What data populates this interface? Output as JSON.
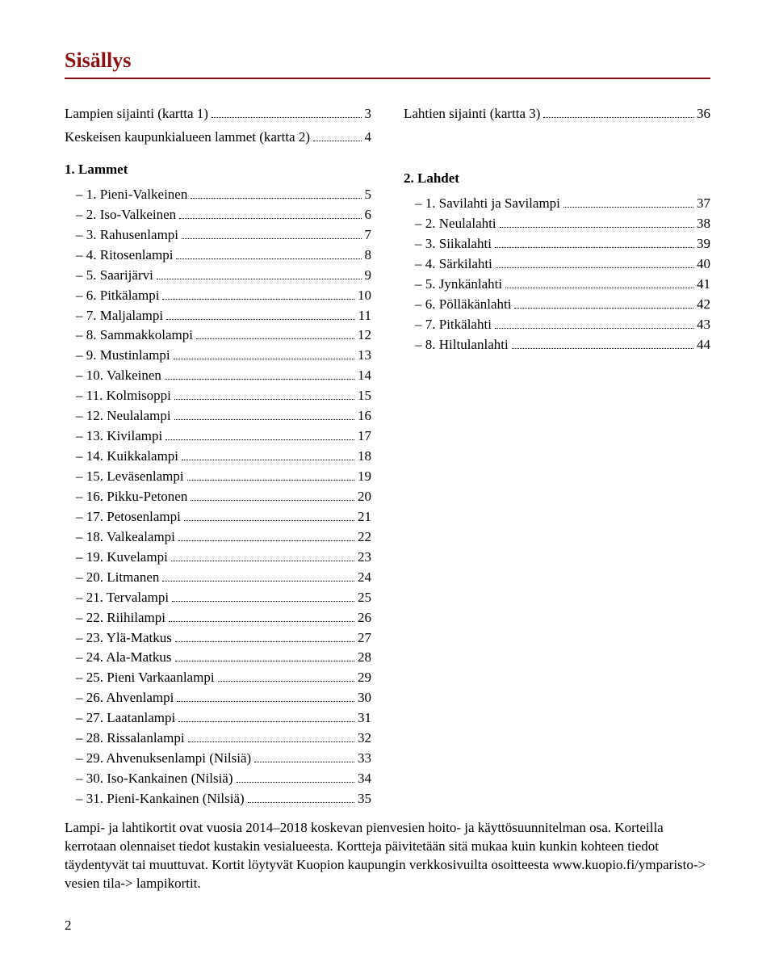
{
  "title": "Sisällys",
  "colors": {
    "accent": "#8a0f10",
    "text": "#000000",
    "background": "#ffffff"
  },
  "left": {
    "top1": {
      "label": "Lampien sijainti (kartta 1)",
      "page": "3"
    },
    "top2": {
      "label": "Keskeisen kaupunkialueen lammet (kartta 2)",
      "page": "4"
    },
    "section": "1. Lammet",
    "items": [
      {
        "label": "– 1. Pieni-Valkeinen",
        "page": "5"
      },
      {
        "label": "– 2. Iso-Valkeinen",
        "page": "6"
      },
      {
        "label": "– 3. Rahusenlampi",
        "page": "7"
      },
      {
        "label": "– 4. Ritosenlampi",
        "page": "8"
      },
      {
        "label": "– 5. Saarijärvi",
        "page": "9"
      },
      {
        "label": "– 6. Pitkälampi",
        "page": "10"
      },
      {
        "label": "– 7. Maljalampi",
        "page": "11"
      },
      {
        "label": "– 8. Sammakkolampi",
        "page": "12"
      },
      {
        "label": "– 9. Mustinlampi",
        "page": "13"
      },
      {
        "label": "– 10. Valkeinen",
        "page": "14"
      },
      {
        "label": "– 11. Kolmisoppi",
        "page": "15"
      },
      {
        "label": "– 12. Neulalampi",
        "page": "16"
      },
      {
        "label": "– 13. Kivilampi",
        "page": "17"
      },
      {
        "label": "– 14. Kuikkalampi",
        "page": "18"
      },
      {
        "label": "– 15. Leväsenlampi",
        "page": "19"
      },
      {
        "label": "– 16. Pikku-Petonen",
        "page": "20"
      },
      {
        "label": "– 17. Petosenlampi",
        "page": "21"
      },
      {
        "label": "– 18. Valkealampi",
        "page": "22"
      },
      {
        "label": "– 19. Kuvelampi",
        "page": "23"
      },
      {
        "label": "– 20. Litmanen",
        "page": "24"
      },
      {
        "label": "– 21. Tervalampi",
        "page": "25"
      },
      {
        "label": "– 22. Riihilampi",
        "page": "26"
      },
      {
        "label": "– 23. Ylä-Matkus",
        "page": "27"
      },
      {
        "label": "– 24. Ala-Matkus",
        "page": "28"
      },
      {
        "label": "– 25. Pieni Varkaanlampi",
        "page": "29"
      },
      {
        "label": "– 26. Ahvenlampi",
        "page": "30"
      },
      {
        "label": "– 27. Laatanlampi",
        "page": "31"
      },
      {
        "label": "– 28. Rissalanlampi",
        "page": "32"
      },
      {
        "label": "– 29. Ahvenuksenlampi (Nilsiä)",
        "page": "33"
      },
      {
        "label": "– 30. Iso-Kankainen (Nilsiä)",
        "page": "34"
      },
      {
        "label": "– 31. Pieni-Kankainen (Nilsiä)",
        "page": "35"
      }
    ]
  },
  "right": {
    "top1": {
      "label": "Lahtien sijainti (kartta 3)",
      "page": "36"
    },
    "section": "2. Lahdet",
    "items": [
      {
        "label": "– 1. Savilahti ja Savilampi",
        "page": "37"
      },
      {
        "label": "– 2. Neulalahti",
        "page": "38"
      },
      {
        "label": "– 3. Siikalahti",
        "page": "39"
      },
      {
        "label": "– 4. Särkilahti",
        "page": "40"
      },
      {
        "label": "– 5. Jynkänlahti",
        "page": "41"
      },
      {
        "label": "– 6. Pölläkänlahti",
        "page": "42"
      },
      {
        "label": "– 7. Pitkälahti",
        "page": "43"
      },
      {
        "label": "– 8. Hiltulanlahti",
        "page": "44"
      }
    ]
  },
  "footer": "Lampi- ja lahtikortit ovat vuosia 2014–2018 koskevan pienvesien hoito- ja käyttösuunnitelman osa.  Korteilla kerrotaan olennaiset tiedot kustakin vesialueesta. Kortteja päivitetään sitä mukaa kuin kunkin kohteen tiedot täydentyvät tai muuttuvat. Kortit löytyvät Kuopion kaupungin verkkosivuilta osoitteesta www.kuopio.fi/ymparisto-> vesien tila-> lampikortit.",
  "pageNumber": "2"
}
